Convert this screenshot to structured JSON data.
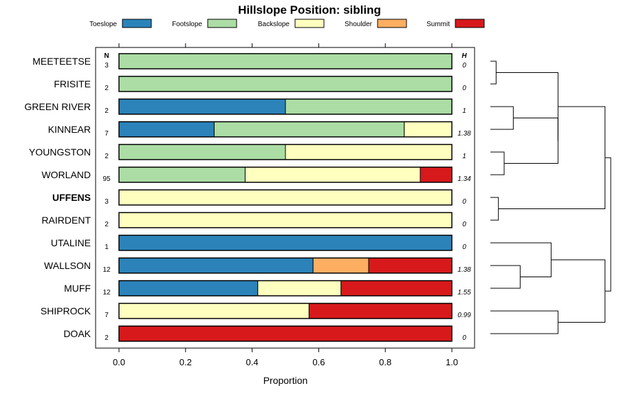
{
  "chart_data": {
    "type": "bar",
    "orientation": "horizontal",
    "stacked": true,
    "title": "Hillslope Position: sibling",
    "xlabel": "Proportion",
    "xlim": [
      0,
      1
    ],
    "xticks": [
      "0.0",
      "0.2",
      "0.4",
      "0.6",
      "0.8",
      "1.0"
    ],
    "n_header": "N",
    "h_header": "H",
    "legend_position": "top",
    "categories": [
      "Toeslope",
      "Footslope",
      "Backslope",
      "Shoulder",
      "Summit"
    ],
    "colors": [
      "#2b83ba",
      "#abdda4",
      "#ffffbf",
      "#fdae61",
      "#d7191c"
    ],
    "rows": [
      {
        "name": "MEETEETSE",
        "n": "3",
        "h": "0",
        "bold": false,
        "values": [
          0,
          1,
          0,
          0,
          0
        ]
      },
      {
        "name": "FRISITE",
        "n": "2",
        "h": "0",
        "bold": false,
        "values": [
          0,
          1,
          0,
          0,
          0
        ]
      },
      {
        "name": "GREEN RIVER",
        "n": "2",
        "h": "1",
        "bold": false,
        "values": [
          0.5,
          0.5,
          0,
          0,
          0
        ]
      },
      {
        "name": "KINNEAR",
        "n": "7",
        "h": "1.38",
        "bold": false,
        "values": [
          0.286,
          0.571,
          0.143,
          0,
          0
        ]
      },
      {
        "name": "YOUNGSTON",
        "n": "2",
        "h": "1",
        "bold": false,
        "values": [
          0,
          0.5,
          0.5,
          0,
          0
        ]
      },
      {
        "name": "WORLAND",
        "n": "95",
        "h": "1.34",
        "bold": false,
        "values": [
          0,
          0.379,
          0.526,
          0,
          0.095
        ]
      },
      {
        "name": "UFFENS",
        "n": "3",
        "h": "0",
        "bold": true,
        "values": [
          0,
          0,
          1,
          0,
          0
        ]
      },
      {
        "name": "RAIRDENT",
        "n": "2",
        "h": "0",
        "bold": false,
        "values": [
          0,
          0,
          1,
          0,
          0
        ]
      },
      {
        "name": "UTALINE",
        "n": "1",
        "h": "0",
        "bold": false,
        "values": [
          1,
          0,
          0,
          0,
          0
        ]
      },
      {
        "name": "WALLSON",
        "n": "12",
        "h": "1.38",
        "bold": false,
        "values": [
          0.583,
          0,
          0,
          0.167,
          0.25
        ]
      },
      {
        "name": "MUFF",
        "n": "12",
        "h": "1.55",
        "bold": false,
        "values": [
          0.417,
          0,
          0.25,
          0,
          0.333
        ]
      },
      {
        "name": "SHIPROCK",
        "n": "7",
        "h": "0.99",
        "bold": false,
        "values": [
          0,
          0,
          0.571,
          0,
          0.429
        ]
      },
      {
        "name": "DOAK",
        "n": "2",
        "h": "0",
        "bold": false,
        "values": [
          0,
          0,
          0,
          0,
          1
        ]
      }
    ],
    "dendrogram": {
      "merges": [
        {
          "a": 0,
          "b": 1,
          "height": 0.05
        },
        {
          "a": 6,
          "b": 7,
          "height": 0.07
        },
        {
          "a": 2,
          "b": 3,
          "height": 0.2
        },
        {
          "a": 4,
          "b": 5,
          "height": 0.12
        },
        {
          "a": 9,
          "b": 10,
          "height": 0.26
        },
        {
          "a": 11,
          "b": 12,
          "height": 0.59
        },
        {
          "a": "m2",
          "b": "m3",
          "height": 0.59
        },
        {
          "a": "m4",
          "b": 8,
          "height": 0.53
        },
        {
          "a": "m0",
          "b": "m6",
          "height": 0.59
        },
        {
          "a": "m7",
          "b": "m5",
          "height": 1.0
        },
        {
          "a": "m8",
          "b": "m1",
          "height": 1.0
        },
        {
          "a": "m10",
          "b": "m9",
          "height": 1.05
        }
      ]
    }
  }
}
